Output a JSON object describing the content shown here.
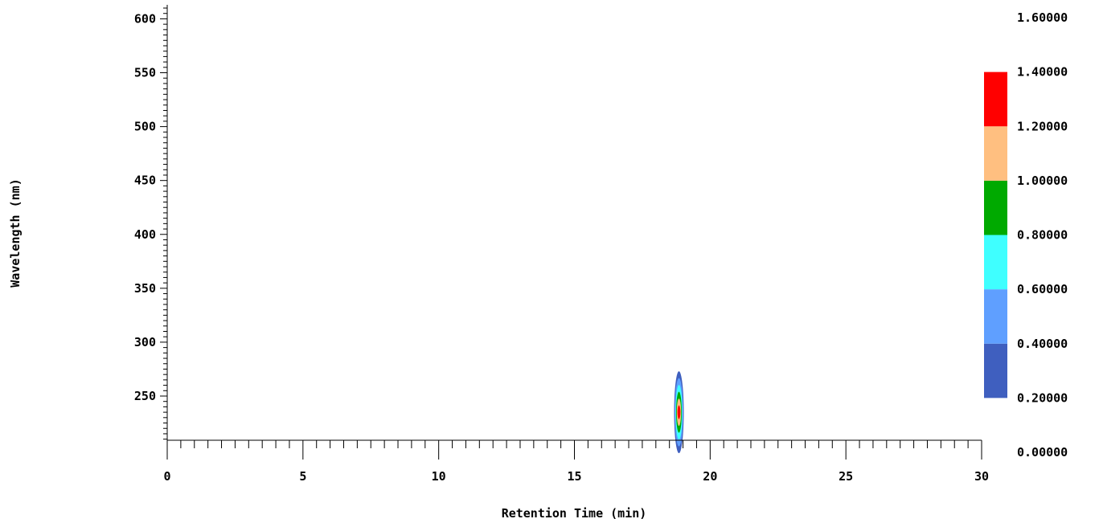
{
  "chart_data": {
    "type": "contour",
    "xlabel": "Retention Time (min)",
    "ylabel": "Wavelength (nm)",
    "xlim": [
      0,
      30
    ],
    "ylim": [
      209,
      613
    ],
    "x_ticks": [
      "0",
      "5",
      "10",
      "15",
      "20",
      "25",
      "30"
    ],
    "y_ticks": [
      "250",
      "300",
      "350",
      "400",
      "450",
      "500",
      "550",
      "600"
    ],
    "colorbar": {
      "ticks": [
        "0.00000",
        "0.20000",
        "0.40000",
        "0.60000",
        "0.80000",
        "1.00000",
        "1.20000",
        "1.40000",
        "1.60000"
      ],
      "levels": [
        {
          "min": 0.2,
          "max": 0.4,
          "color": "#3f5fbf"
        },
        {
          "min": 0.4,
          "max": 0.6,
          "color": "#5f9fff"
        },
        {
          "min": 0.6,
          "max": 0.8,
          "color": "#3fffff"
        },
        {
          "min": 0.8,
          "max": 1.0,
          "color": "#00aa00"
        },
        {
          "min": 1.0,
          "max": 1.2,
          "color": "#ffbf80"
        },
        {
          "min": 1.2,
          "max": 1.4,
          "color": "#ff0000"
        }
      ]
    },
    "peaks": [
      {
        "retention_time": 18.85,
        "wavelength": 235,
        "max_absorbance": 1.4,
        "wavelength_range": [
          209,
          273
        ]
      }
    ]
  }
}
